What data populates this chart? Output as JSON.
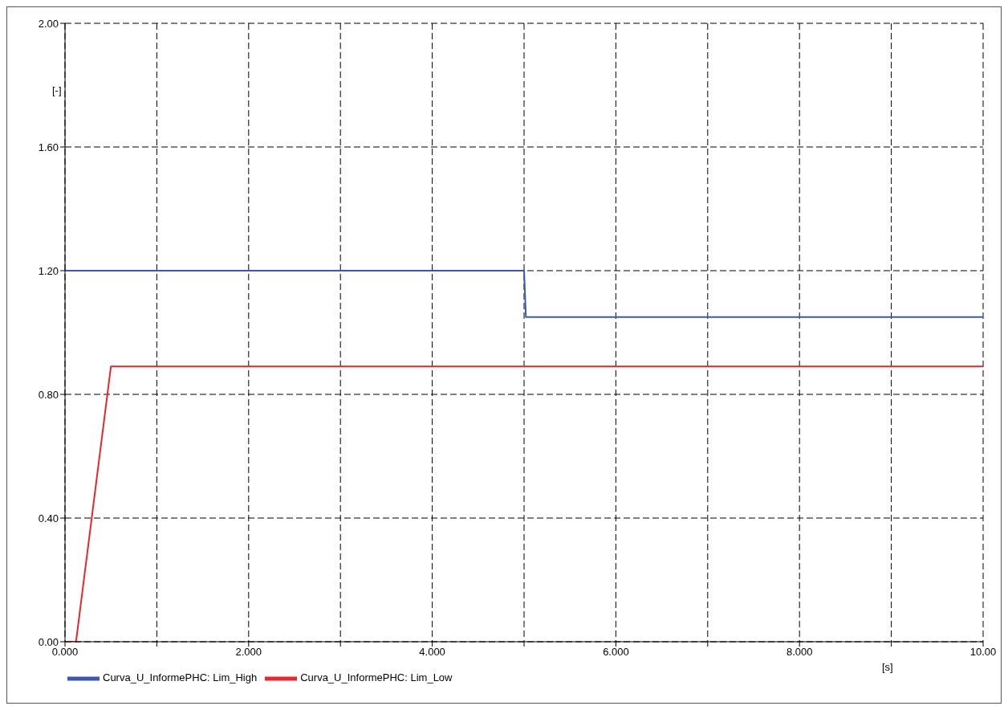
{
  "chart_data": {
    "type": "line",
    "xlabel": "[s]",
    "ylabel": "[-]",
    "xlim": [
      0,
      10
    ],
    "ylim": [
      0,
      2
    ],
    "xticks": [
      {
        "value": 0,
        "label": "0.000"
      },
      {
        "value": 1,
        "label": null
      },
      {
        "value": 2,
        "label": "2.000"
      },
      {
        "value": 3,
        "label": null
      },
      {
        "value": 4,
        "label": "4.000"
      },
      {
        "value": 5,
        "label": null
      },
      {
        "value": 6,
        "label": "6.000"
      },
      {
        "value": 7,
        "label": null
      },
      {
        "value": 8,
        "label": "8.000"
      },
      {
        "value": 9,
        "label": null
      },
      {
        "value": 10,
        "label": "10.00"
      }
    ],
    "yticks": [
      {
        "value": 0,
        "label": "0.00"
      },
      {
        "value": 0.4,
        "label": "0.40"
      },
      {
        "value": 0.8,
        "label": "0.80"
      },
      {
        "value": 1.2,
        "label": "1.20"
      },
      {
        "value": 1.6,
        "label": "1.60"
      },
      {
        "value": 2,
        "label": "2.00"
      }
    ],
    "grid": true,
    "legend": "bottom left",
    "line_style": "solid",
    "marker": "none",
    "series": [
      {
        "name": "Curva_U_InformePHC: Lim_High",
        "color": "#3a57b5",
        "x": [
          0,
          5,
          5.02,
          10
        ],
        "values": [
          1.2,
          1.2,
          1.05,
          1.05
        ]
      },
      {
        "name": "Curva_U_InformePHC: Lim_Low",
        "color": "#e8262c",
        "x": [
          0,
          0.12,
          0.5,
          10
        ],
        "values": [
          0,
          0,
          0.89,
          0.89
        ]
      }
    ]
  }
}
